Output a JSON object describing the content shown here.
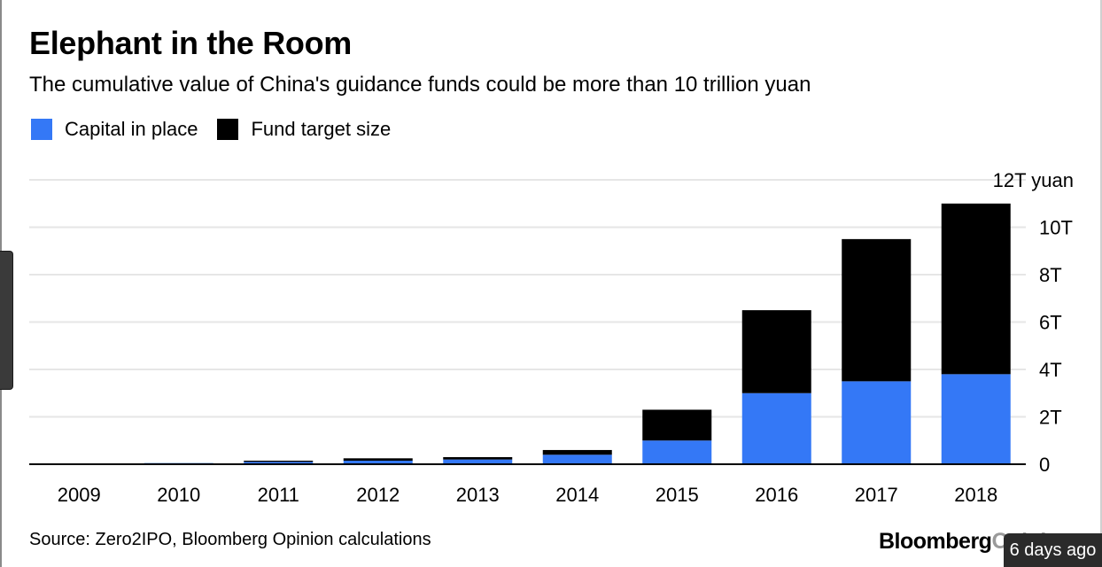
{
  "title": "Elephant in the Room",
  "subtitle": "The cumulative value of China's guidance funds could be more than 10 trillion yuan",
  "legend": [
    {
      "label": "Capital in place",
      "color": "#3478f6"
    },
    {
      "label": "Fund target size",
      "color": "#000000"
    }
  ],
  "source": "Source: Zero2IPO, Bloomberg Opinion calculations",
  "brand": {
    "main": "Bloomberg",
    "faded": "Opinion"
  },
  "timestamp": "6 days ago",
  "chart_data": {
    "type": "bar",
    "stacked": true,
    "categories": [
      "2009",
      "2010",
      "2011",
      "2012",
      "2013",
      "2014",
      "2015",
      "2016",
      "2017",
      "2018"
    ],
    "series": [
      {
        "name": "Capital in place",
        "color": "#3478f6",
        "values": [
          0.0,
          0.05,
          0.1,
          0.15,
          0.2,
          0.4,
          1.0,
          3.0,
          3.5,
          3.8
        ]
      },
      {
        "name": "Fund target size",
        "color": "#000000",
        "values": [
          0.0,
          0.0,
          0.05,
          0.1,
          0.1,
          0.2,
          1.3,
          3.5,
          6.0,
          7.2
        ]
      }
    ],
    "y_ticks": [
      {
        "value": 0,
        "label": "0"
      },
      {
        "value": 2,
        "label": "2T"
      },
      {
        "value": 4,
        "label": "4T"
      },
      {
        "value": 6,
        "label": "6T"
      },
      {
        "value": 8,
        "label": "8T"
      },
      {
        "value": 10,
        "label": "10T"
      },
      {
        "value": 12,
        "label": "12T yuan"
      }
    ],
    "ylim": [
      0,
      12
    ],
    "grid": true,
    "y_axis_side": "right",
    "legend_position": "top-left"
  }
}
